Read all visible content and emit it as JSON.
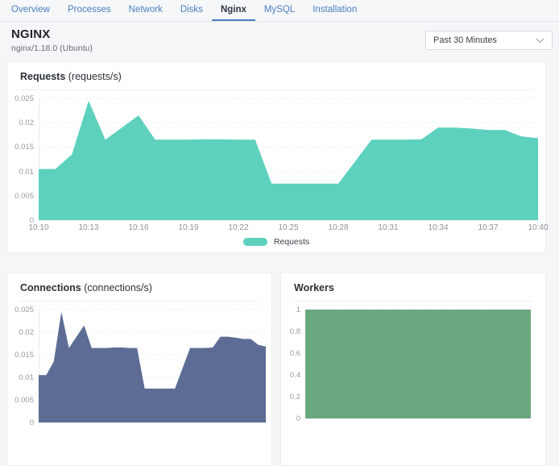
{
  "tabs": {
    "items": [
      {
        "label": "Overview",
        "active": false
      },
      {
        "label": "Processes",
        "active": false
      },
      {
        "label": "Network",
        "active": false
      },
      {
        "label": "Disks",
        "active": false
      },
      {
        "label": "Nginx",
        "active": true
      },
      {
        "label": "MySQL",
        "active": false
      },
      {
        "label": "Installation",
        "active": false
      }
    ]
  },
  "header": {
    "title": "NGINX",
    "subtitle": "nginx/1.18.0 (Ubuntu)",
    "time_range": "Past 30 Minutes"
  },
  "colors": {
    "accent_blue": "#4a7fc0",
    "requests_fill": "#5dd1be",
    "connections_fill": "#5c6c94",
    "workers_fill": "#69a87f"
  },
  "chart_data": {
    "requests": {
      "type": "area",
      "title": "Requests",
      "unit": "(requests/s)",
      "color": "#5dd1be",
      "ylim": [
        0,
        0.025
      ],
      "yticks": [
        0,
        0.005,
        0.01,
        0.015,
        0.02,
        0.025
      ],
      "ytick_labels": [
        "0",
        "0.005",
        "0.01",
        "0.015",
        "0.02",
        "0.025"
      ],
      "x_labels": [
        "10:10",
        "10:13",
        "10:16",
        "10:19",
        "10:22",
        "10:25",
        "10:28",
        "10:31",
        "10:34",
        "10:37",
        "10:40"
      ],
      "x_start": "10:10",
      "x_end": "10:40",
      "x_step_minutes": 1,
      "values": [
        0.0105,
        0.0105,
        0.0135,
        0.0245,
        0.0165,
        0.019,
        0.0215,
        0.0165,
        0.0165,
        0.0165,
        0.0166,
        0.0166,
        0.0165,
        0.0165,
        0.0075,
        0.0075,
        0.0075,
        0.0075,
        0.0075,
        0.012,
        0.0165,
        0.0165,
        0.0165,
        0.0166,
        0.019,
        0.019,
        0.0188,
        0.0185,
        0.0185,
        0.0172,
        0.0168
      ],
      "legend_label": "Requests",
      "grid": "dotted-horizontal",
      "legend_position": "bottom-center"
    },
    "connections": {
      "type": "area",
      "title": "Connections",
      "unit": "(connections/s)",
      "color": "#5c6c94",
      "ylim": [
        0,
        0.025
      ],
      "yticks": [
        0,
        0.005,
        0.01,
        0.015,
        0.02,
        0.025
      ],
      "ytick_labels": [
        "0",
        "0.005",
        "0.01",
        "0.015",
        "0.02",
        "0.025"
      ],
      "values": [
        0.0105,
        0.0105,
        0.0135,
        0.0245,
        0.0165,
        0.019,
        0.0215,
        0.0165,
        0.0165,
        0.0165,
        0.0166,
        0.0166,
        0.0165,
        0.0165,
        0.0075,
        0.0075,
        0.0075,
        0.0075,
        0.0075,
        0.012,
        0.0165,
        0.0165,
        0.0165,
        0.0166,
        0.019,
        0.019,
        0.0188,
        0.0185,
        0.0185,
        0.0172,
        0.0168
      ],
      "grid": "dotted-horizontal"
    },
    "workers": {
      "type": "area",
      "title": "Workers",
      "unit": "",
      "color": "#69a87f",
      "ylim": [
        0,
        1
      ],
      "yticks": [
        0,
        0.2,
        0.4,
        0.6,
        0.8,
        1
      ],
      "ytick_labels": [
        "0",
        "0.2",
        "0.4",
        "0.6",
        "0.8",
        "1"
      ],
      "values": [
        1,
        1
      ],
      "grid": "dotted-horizontal"
    }
  }
}
